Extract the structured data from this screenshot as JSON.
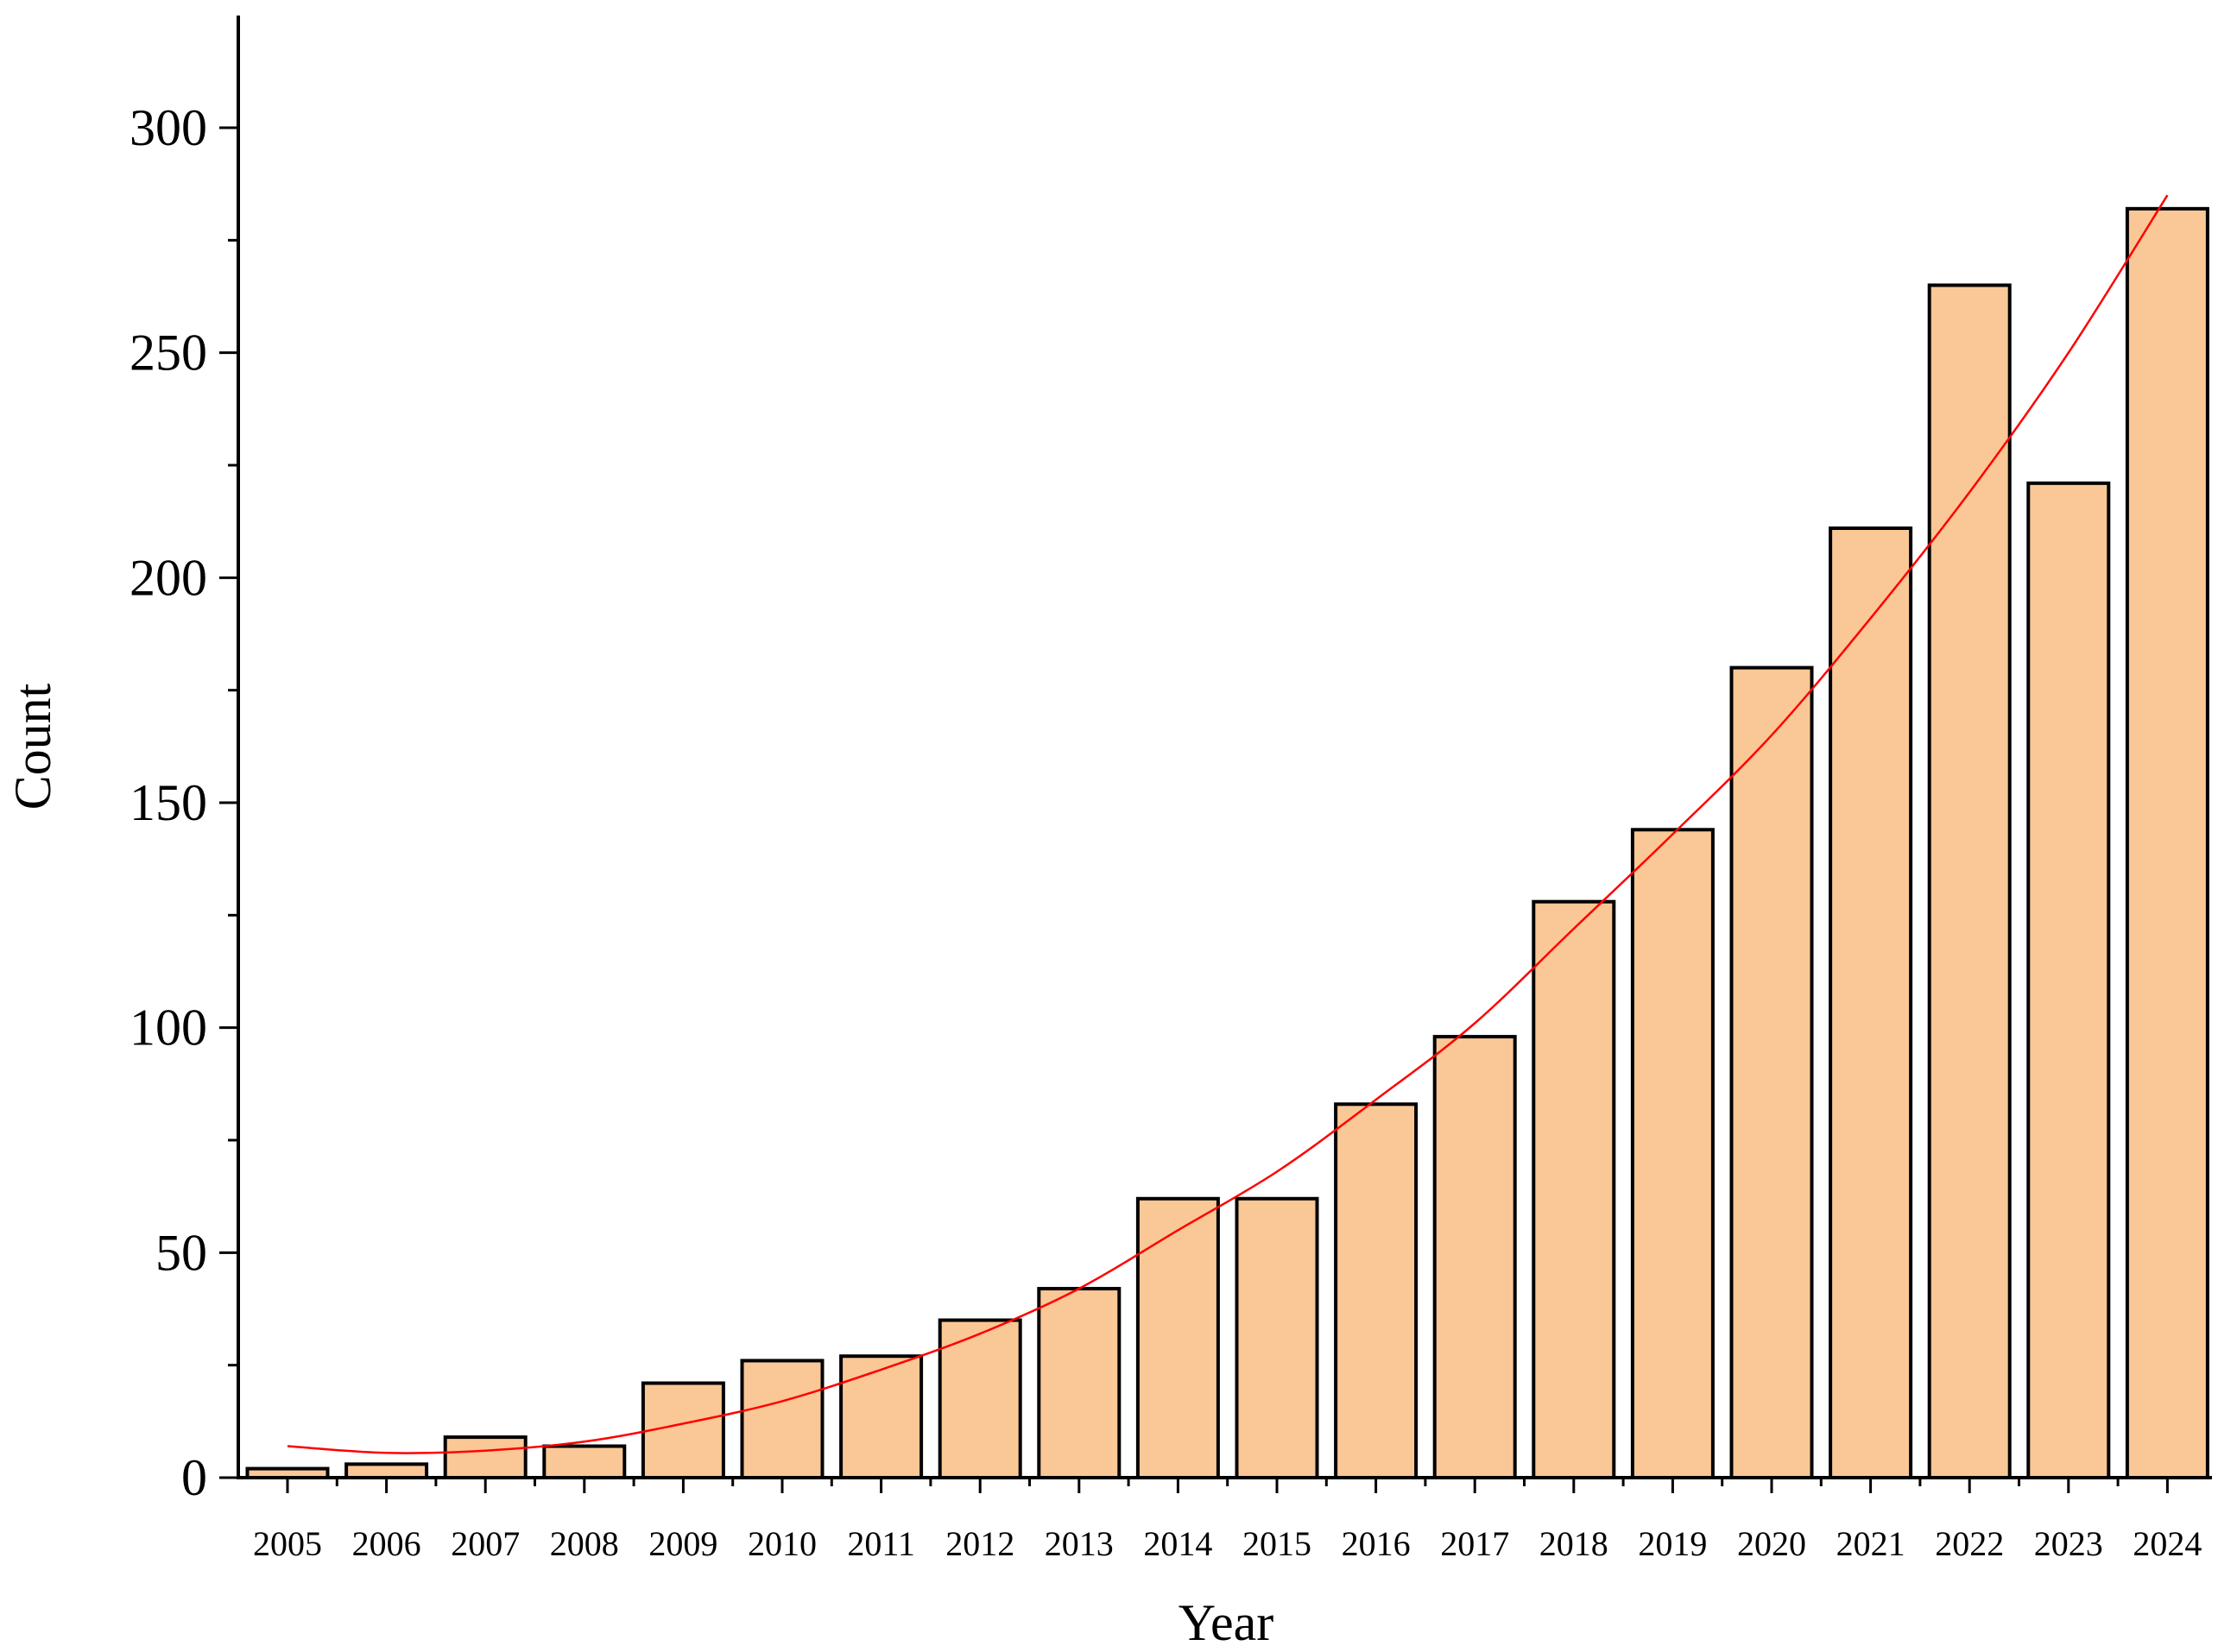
{
  "chart_data": {
    "type": "bar",
    "categories": [
      "2005",
      "2006",
      "2007",
      "2008",
      "2009",
      "2010",
      "2011",
      "2012",
      "2013",
      "2014",
      "2015",
      "2016",
      "2017",
      "2018",
      "2019",
      "2020",
      "2021",
      "2022",
      "2023",
      "2024"
    ],
    "values": [
      2,
      3,
      9,
      7,
      21,
      26,
      27,
      35,
      42,
      62,
      62,
      83,
      98,
      128,
      144,
      180,
      211,
      265,
      221,
      282
    ],
    "trendline": {
      "type": "polynomial",
      "years": [
        2005,
        2006,
        2007,
        2008,
        2009,
        2010,
        2011,
        2012,
        2013,
        2014,
        2015,
        2016,
        2017,
        2018,
        2019,
        2020,
        2021,
        2022,
        2023,
        2024
      ],
      "values": [
        7,
        5.5,
        6,
        8,
        12,
        17,
        24,
        32,
        42,
        55,
        68,
        84,
        101,
        122,
        143,
        165,
        191,
        219,
        250,
        285
      ],
      "color": "#ff0000"
    },
    "xlabel": "Year",
    "ylabel": "Count",
    "ylim": [
      0,
      325
    ],
    "yticks": [
      0,
      50,
      100,
      150,
      200,
      250,
      300
    ],
    "bar_color": "#fac796",
    "bar_edge_color": "#000000",
    "grid": false
  }
}
